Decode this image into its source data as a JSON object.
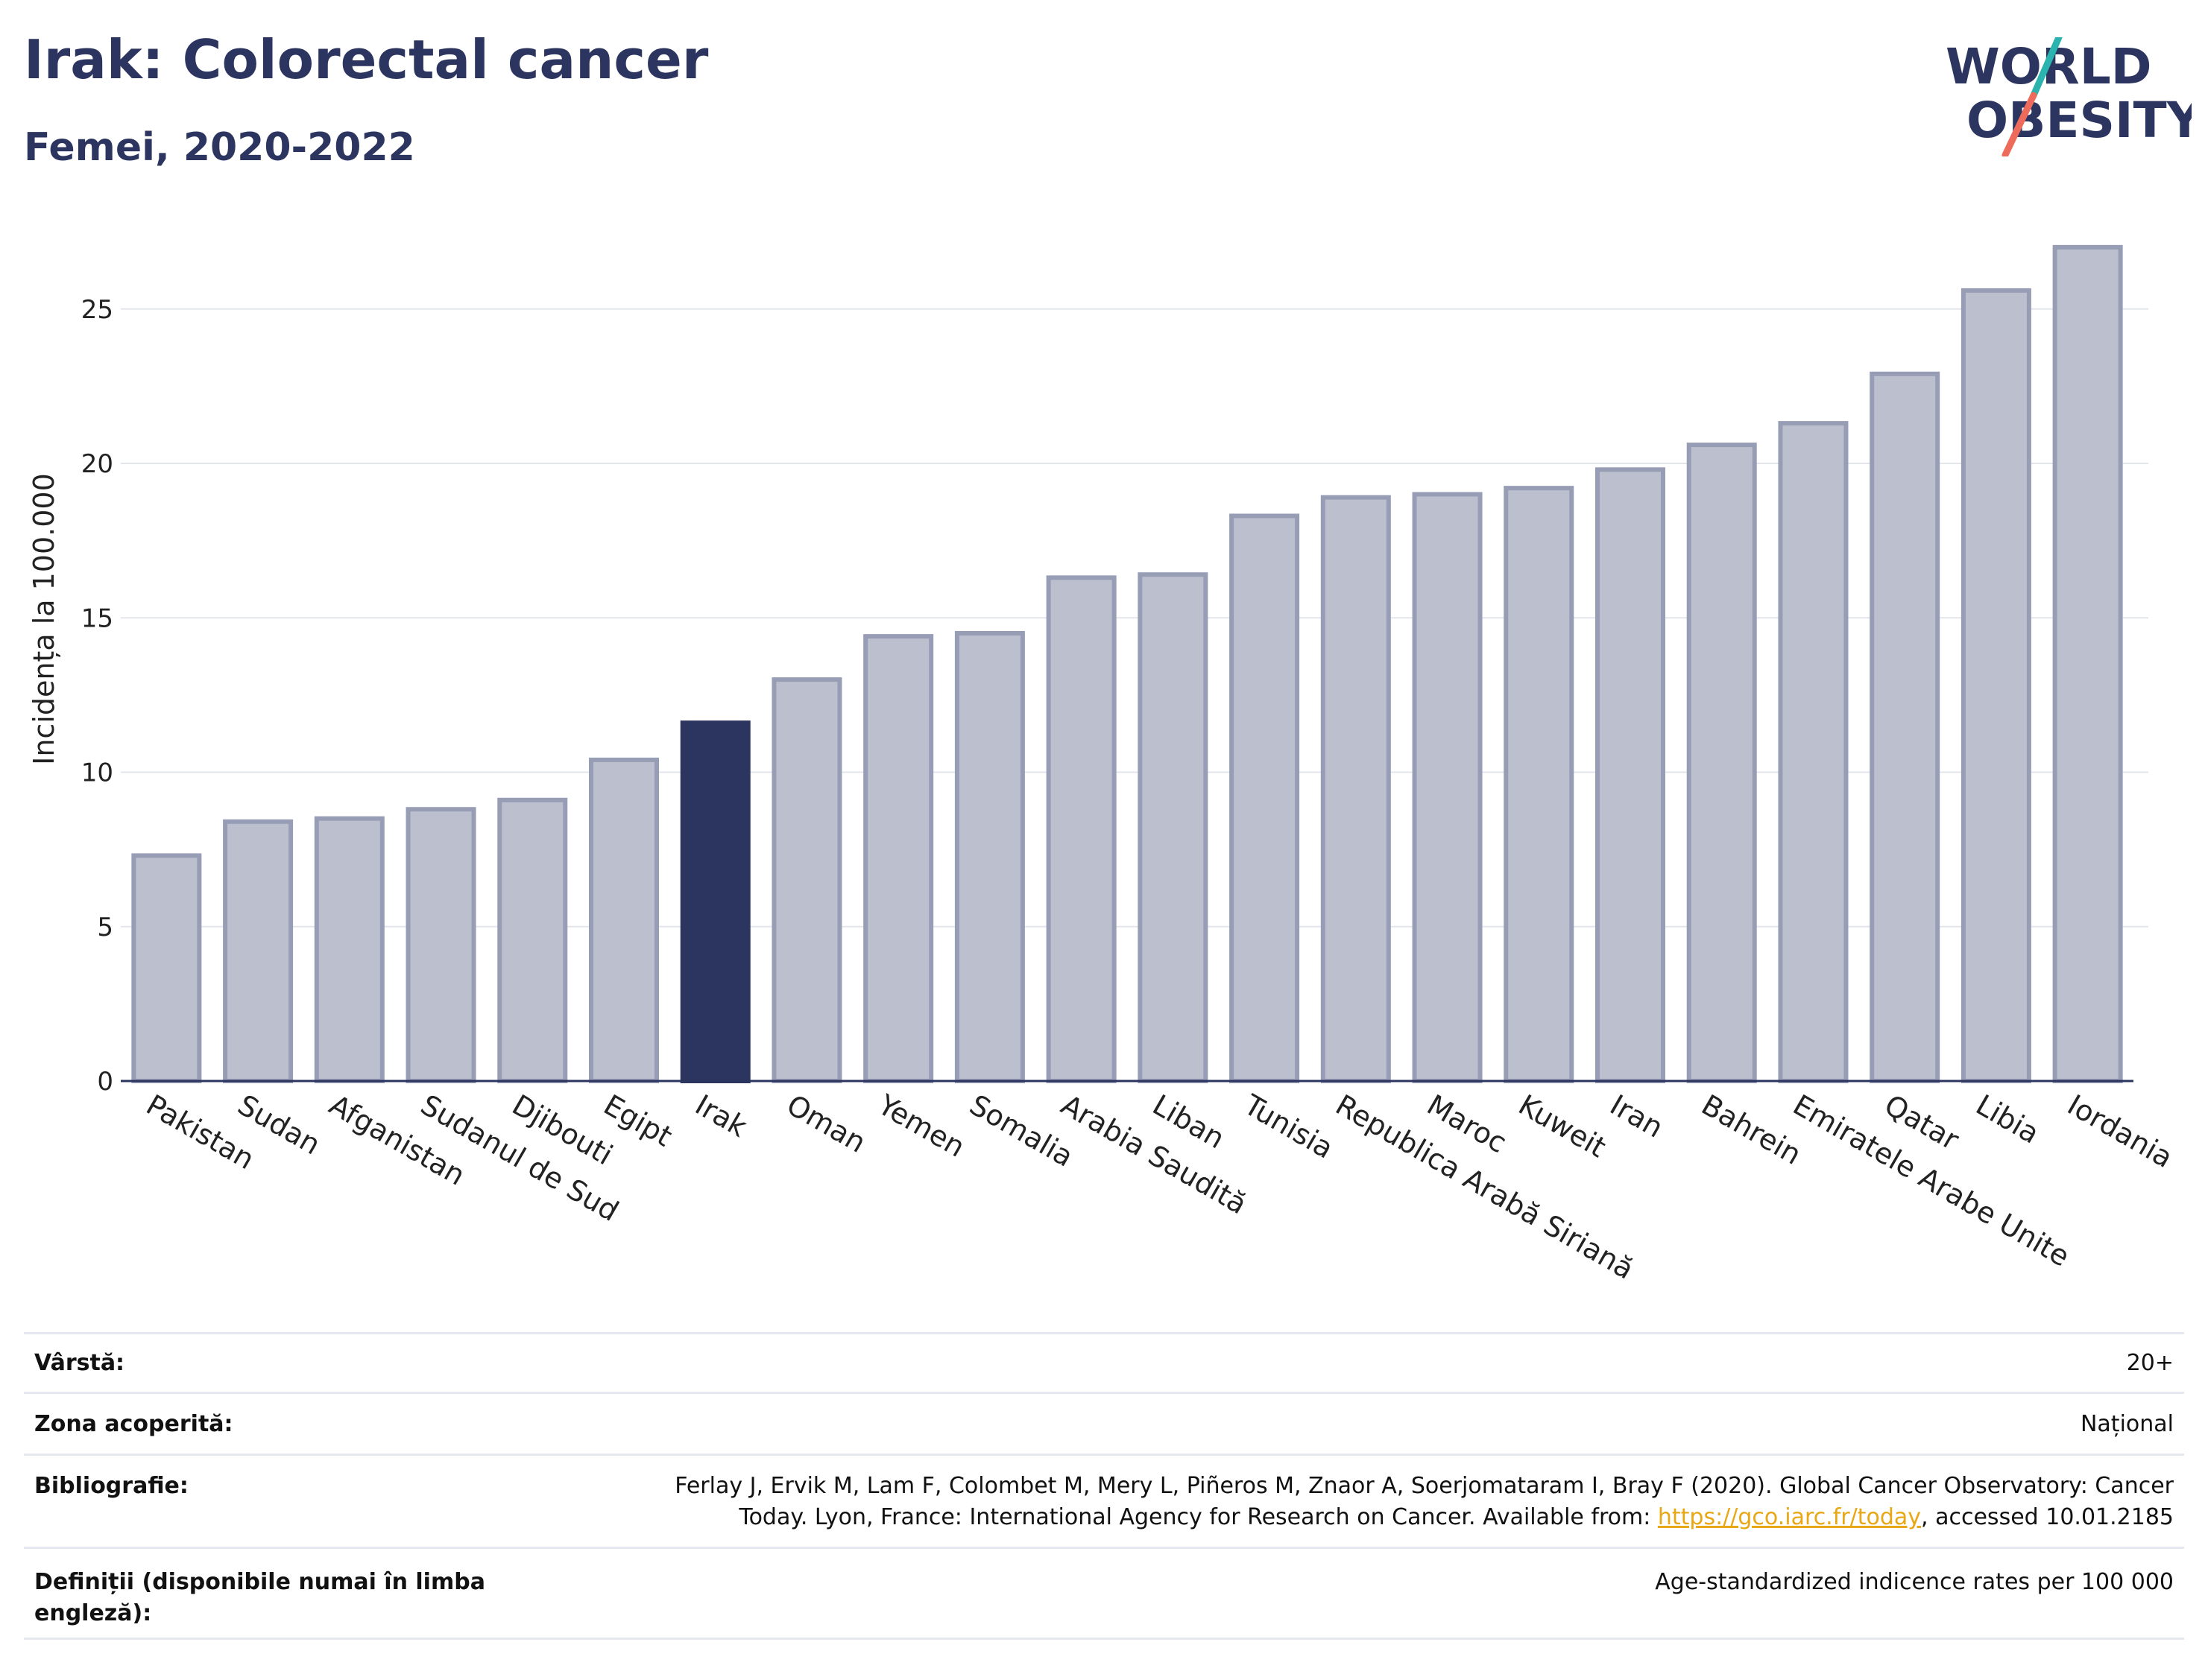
{
  "header": {
    "title": "Irak: Colorectal cancer",
    "subtitle": "Femei, 2020-2022",
    "logo_line1": "WORLD",
    "logo_line2": "OBESITY"
  },
  "colors": {
    "highlight": "#2c3560",
    "bar": "#bcc0ce",
    "bar_border": "#979db5",
    "text_dark": "#2c3560",
    "link": "#e8a815",
    "logo_teal": "#2bb3b0",
    "logo_coral": "#ee6b5b"
  },
  "chart_data": {
    "type": "bar",
    "ylabel": "Incidența la 100.000",
    "xlabel": "",
    "ylim": [
      0,
      27.5
    ],
    "yticks": [
      0,
      5,
      10,
      15,
      20,
      25
    ],
    "grid": true,
    "highlight": "Irak",
    "categories": [
      "Pakistan",
      "Sudan",
      "Afganistan",
      "Sudanul de Sud",
      "Djibouti",
      "Egipt",
      "Irak",
      "Oman",
      "Yemen",
      "Somalia",
      "Arabia Saudită",
      "Liban",
      "Tunisia",
      "Republica Arabă Siriană",
      "Maroc",
      "Kuweit",
      "Iran",
      "Bahrein",
      "Emiratele Arabe Unite",
      "Qatar",
      "Libia",
      "Iordania"
    ],
    "values": [
      7.3,
      8.4,
      8.5,
      8.8,
      9.1,
      10.4,
      11.6,
      13.0,
      14.4,
      14.5,
      16.3,
      16.4,
      18.3,
      18.9,
      19.0,
      19.2,
      19.8,
      20.6,
      21.3,
      22.9,
      25.6,
      27.0
    ]
  },
  "meta": {
    "age_label": "Vârstă:",
    "age_value": "20+",
    "coverage_label": "Zona acoperită:",
    "coverage_value": "Național",
    "bib_label": "Bibliografie:",
    "bib_line1": "Ferlay J, Ervik M, Lam F, Colombet M, Mery L, Piñeros M, Znaor A, Soerjomataram I, Bray F (2020). Global Cancer Observatory: Cancer",
    "bib_line2_pre": "Today. Lyon, France: International Agency for Research on Cancer. Available from: ",
    "bib_link": "https://gco.iarc.fr/today",
    "bib_line2_post": ", accessed 10.01.2185",
    "def_label": "Definiții (disponibile numai în limba engleză):",
    "def_value": "Age-standardized indicence rates per 100 000"
  }
}
